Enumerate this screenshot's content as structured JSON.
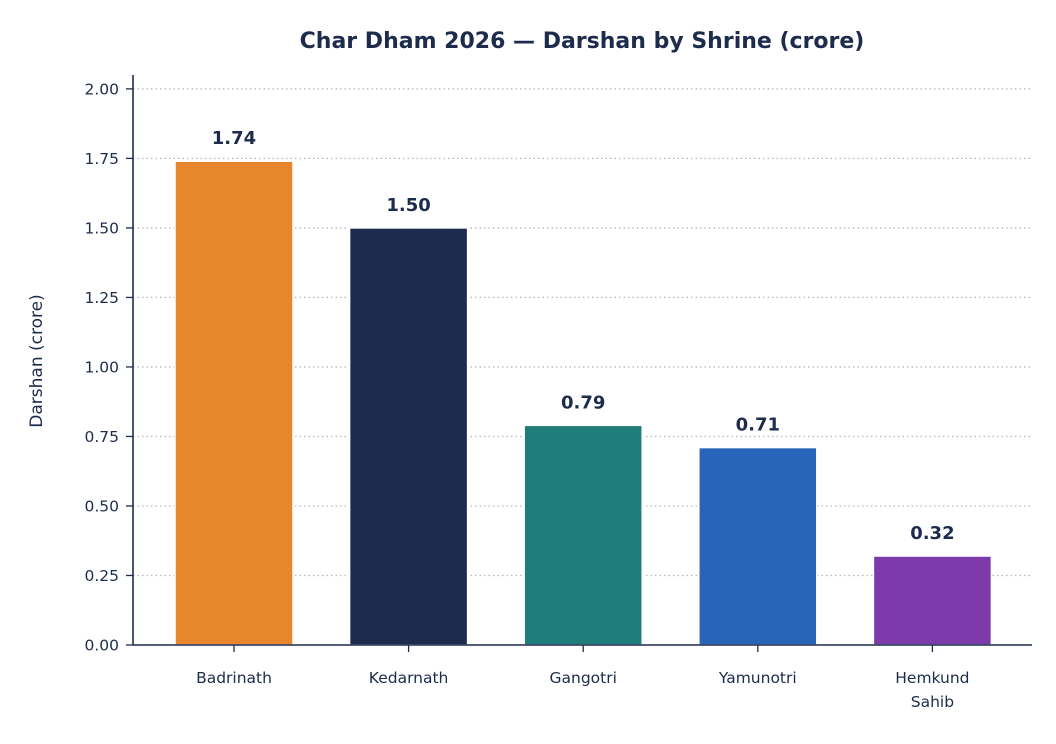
{
  "chart_data": {
    "type": "bar",
    "title": "Char Dham 2026 — Darshan by Shrine (crore)",
    "xlabel": "",
    "ylabel": "Darshan (crore)",
    "categories": [
      [
        "Badrinath"
      ],
      [
        "Kedarnath"
      ],
      [
        "Gangotri"
      ],
      [
        "Yamunotri"
      ],
      [
        "Hemkund",
        "Sahib"
      ]
    ],
    "values": [
      1.74,
      1.5,
      0.79,
      0.71,
      0.32
    ],
    "value_labels": [
      "1.74",
      "1.50",
      "0.79",
      "0.71",
      "0.32"
    ],
    "bar_colors": [
      "#e8862d",
      "#1d2b4c",
      "#1f7e7a",
      "#2765b8",
      "#7d3aab"
    ],
    "ylim": [
      0,
      2.05
    ],
    "yticks": [
      0,
      0.25,
      0.5,
      0.75,
      1.0,
      1.25,
      1.5,
      1.75,
      2.0
    ],
    "ytick_labels": [
      "0.00",
      "0.25",
      "0.50",
      "0.75",
      "1.00",
      "1.25",
      "1.50",
      "1.75",
      "2.00"
    ],
    "grid": "y-dotted",
    "legend": "none"
  },
  "colors": {
    "text": "#1d2b4c",
    "axis": "#1d2b4c",
    "grid": "#b8b8b8"
  }
}
